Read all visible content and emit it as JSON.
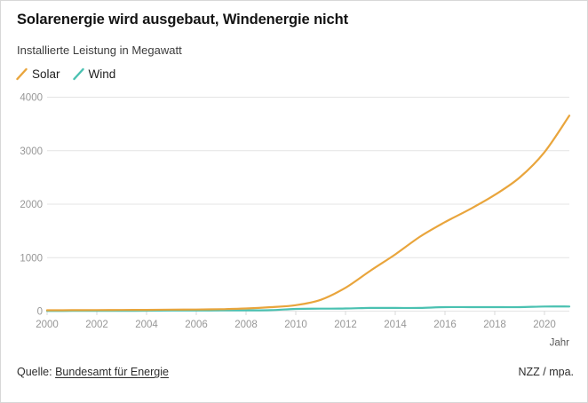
{
  "chart_data": {
    "type": "line",
    "title": "Solarenergie wird ausgebaut, Windenergie nicht",
    "subtitle": "Installierte Leistung in Megawatt",
    "xlabel": "Jahr",
    "ylabel": "",
    "x": [
      2000,
      2001,
      2002,
      2003,
      2004,
      2005,
      2006,
      2007,
      2008,
      2009,
      2010,
      2011,
      2012,
      2013,
      2014,
      2015,
      2016,
      2017,
      2018,
      2019,
      2020,
      2021
    ],
    "series": [
      {
        "name": "Solar",
        "color": "#E9A53C",
        "values": [
          16,
          18,
          20,
          22,
          24,
          28,
          30,
          37,
          49,
          74,
          111,
          211,
          437,
          756,
          1061,
          1394,
          1664,
          1906,
          2173,
          2498,
          2973,
          3655
        ]
      },
      {
        "name": "Wind",
        "color": "#4AC1B1",
        "values": [
          3,
          5,
          5,
          5,
          9,
          12,
          12,
          14,
          14,
          18,
          42,
          46,
          49,
          60,
          60,
          60,
          75,
          75,
          75,
          75,
          87,
          87
        ]
      }
    ],
    "xticks": [
      2000,
      2002,
      2004,
      2006,
      2008,
      2010,
      2012,
      2014,
      2016,
      2018,
      2020
    ],
    "yticks": [
      0,
      1000,
      2000,
      3000,
      4000
    ],
    "xlim": [
      2000,
      2021
    ],
    "ylim": [
      0,
      4000
    ],
    "grid": true,
    "legend_position": "top-left"
  },
  "colors": {
    "grid": "#e4e4e4",
    "tick": "#d9d9d9",
    "tick_label": "#979797",
    "axis_label": "#5a5a5a"
  },
  "footer": {
    "source_prefix": "Quelle:",
    "source_link": "Bundesamt für Energie",
    "credit": "NZZ / mpa."
  }
}
